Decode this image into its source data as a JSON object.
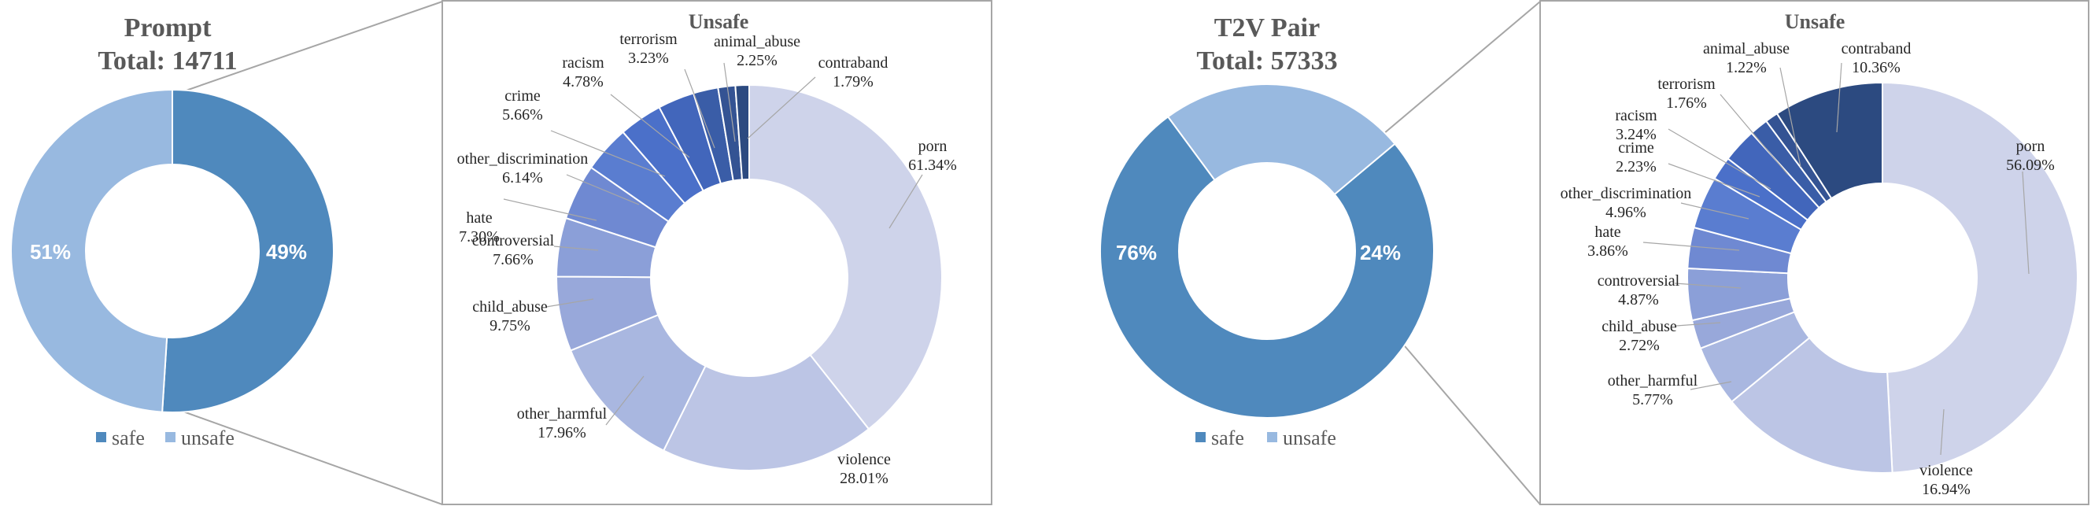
{
  "chart_data": [
    {
      "type": "pie",
      "title": "Prompt",
      "subtitle": "Total: 14711",
      "categories": [
        "safe",
        "unsafe"
      ],
      "values": [
        51,
        49
      ],
      "value_labels": [
        "51%",
        "49%"
      ],
      "colors": [
        "#4f89bd",
        "#98b9e0"
      ],
      "legend": [
        "safe",
        "unsafe"
      ],
      "legend_position": "bottom",
      "hole": true
    },
    {
      "type": "pie",
      "title": "Unsafe",
      "categories": [
        "porn",
        "violence",
        "other_harmful",
        "child_abuse",
        "controversial",
        "hate",
        "other_discrimination",
        "crime",
        "racism",
        "terrorism",
        "animal_abuse",
        "contraband"
      ],
      "values": [
        61.34,
        28.01,
        17.96,
        9.75,
        7.66,
        7.3,
        6.14,
        5.66,
        4.78,
        3.23,
        2.25,
        1.79
      ],
      "value_labels": [
        "61.34%",
        "28.01%",
        "17.96%",
        "9.75%",
        "7.66%",
        "7.30%",
        "6.14%",
        "5.66%",
        "4.78%",
        "3.23%",
        "2.25%",
        "1.79%"
      ],
      "colors": [
        "#ced3ea",
        "#bcc5e5",
        "#a9b7e0",
        "#98a8da",
        "#8b9fd8",
        "#6f89d2",
        "#5a7dd0",
        "#4b70c9",
        "#4266bb",
        "#3a5da7",
        "#345393",
        "#2c4a80"
      ],
      "hole": true
    },
    {
      "type": "pie",
      "title": "T2V Pair",
      "subtitle": "Total: 57333",
      "categories": [
        "safe",
        "unsafe"
      ],
      "values": [
        76,
        24
      ],
      "value_labels": [
        "76%",
        "24%"
      ],
      "colors": [
        "#4f89bd",
        "#98b9e0"
      ],
      "legend": [
        "safe",
        "unsafe"
      ],
      "legend_position": "bottom",
      "hole": true
    },
    {
      "type": "pie",
      "title": "Unsafe",
      "categories": [
        "porn",
        "violence",
        "other_harmful",
        "child_abuse",
        "controversial",
        "hate",
        "other_discrimination",
        "crime",
        "racism",
        "terrorism",
        "animal_abuse",
        "contraband"
      ],
      "values": [
        56.09,
        16.94,
        5.77,
        2.72,
        4.87,
        3.86,
        4.96,
        2.23,
        3.24,
        1.76,
        1.22,
        10.36
      ],
      "value_labels": [
        "56.09%",
        "16.94%",
        "5.77%",
        "2.72%",
        "4.87%",
        "3.86%",
        "4.96%",
        "2.23%",
        "3.24%",
        "1.76%",
        "1.22%",
        "10.36%"
      ],
      "colors": [
        "#ced3ea",
        "#bcc5e5",
        "#a9b7e0",
        "#98a8da",
        "#8b9fd8",
        "#6f89d2",
        "#5a7dd0",
        "#4b70c9",
        "#4266bb",
        "#3a5da7",
        "#345393",
        "#2c4a80"
      ],
      "hole": true
    }
  ]
}
